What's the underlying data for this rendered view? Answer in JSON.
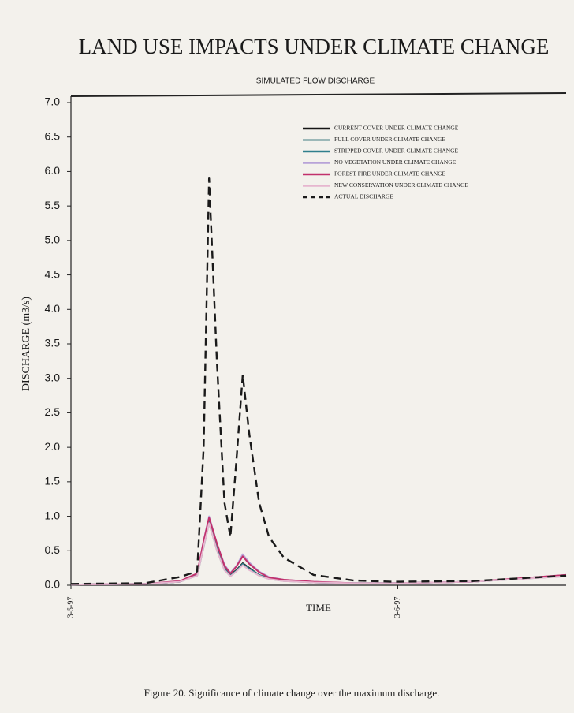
{
  "chart_data": {
    "type": "line",
    "title": "LAND USE IMPACTS UNDER CLIMATE CHANGE",
    "subtitle": "SIMULATED FLOW DISCHARGE",
    "x_label": "TIME",
    "y_label": "DISCHARGE (m3/s)",
    "caption": "Figure 20. Significance of climate change over the maximum discharge.",
    "x": [
      0,
      15,
      22,
      25.5,
      26.8,
      27.9,
      29.5,
      31,
      32.2,
      33.4,
      34.7,
      36,
      38,
      40,
      43,
      49,
      57,
      65,
      81,
      100
    ],
    "xlim": [
      0,
      100
    ],
    "xticks": [
      {
        "value": 0,
        "label": "3-5-97"
      },
      {
        "value": 66,
        "label": "3-6-97"
      }
    ],
    "ylim": [
      0,
      7
    ],
    "yticks": [
      {
        "value": 0,
        "label": "0.0"
      },
      0.5,
      {
        "value": 1,
        "label": "1.0"
      },
      1.5,
      {
        "value": 2,
        "label": "2.0"
      },
      2.5,
      {
        "value": 3,
        "label": "3.0"
      },
      3.5,
      {
        "value": 4,
        "label": "4.0"
      },
      4.5,
      {
        "value": 5,
        "label": "5.0"
      },
      5.5,
      {
        "value": 6,
        "label": "6.0"
      },
      6.5,
      {
        "value": 7,
        "label": "7.0"
      }
    ],
    "grid": false,
    "legend": "upper right",
    "series": [
      {
        "name": "CURRENT COVER UNDER CLIMATE CHANGE",
        "color": "#151515",
        "line_style": "solid",
        "values": [
          0.01,
          0.02,
          0.05,
          0.15,
          0.6,
          0.95,
          0.55,
          0.25,
          0.15,
          0.22,
          0.32,
          0.25,
          0.15,
          0.1,
          0.07,
          0.04,
          0.03,
          0.03,
          0.05,
          0.14
        ]
      },
      {
        "name": "FULL COVER UNDER CLIMATE CHANGE",
        "color": "#7fa6a6",
        "line_style": "solid",
        "values": [
          0.01,
          0.02,
          0.05,
          0.14,
          0.55,
          0.9,
          0.5,
          0.22,
          0.13,
          0.2,
          0.3,
          0.23,
          0.14,
          0.09,
          0.06,
          0.04,
          0.03,
          0.03,
          0.05,
          0.13
        ]
      },
      {
        "name": "STRIPPED COVER UNDER CLIMATE CHANGE",
        "color": "#2f7f8c",
        "line_style": "solid",
        "values": [
          0.01,
          0.02,
          0.05,
          0.15,
          0.58,
          0.93,
          0.52,
          0.24,
          0.14,
          0.21,
          0.31,
          0.24,
          0.15,
          0.1,
          0.07,
          0.04,
          0.03,
          0.03,
          0.05,
          0.14
        ]
      },
      {
        "name": "NO VEGETATION UNDER CLIMATE CHANGE",
        "color": "#b8a3d8",
        "line_style": "solid",
        "values": [
          0.01,
          0.02,
          0.06,
          0.17,
          0.65,
          1.0,
          0.6,
          0.3,
          0.18,
          0.28,
          0.45,
          0.33,
          0.2,
          0.12,
          0.08,
          0.05,
          0.03,
          0.03,
          0.05,
          0.15
        ]
      },
      {
        "name": "FOREST FIRE UNDER CLIMATE CHANGE",
        "color": "#c2306b",
        "line_style": "solid",
        "values": [
          0.01,
          0.02,
          0.06,
          0.17,
          0.64,
          0.98,
          0.6,
          0.28,
          0.17,
          0.27,
          0.42,
          0.31,
          0.19,
          0.11,
          0.08,
          0.05,
          0.03,
          0.03,
          0.05,
          0.15
        ]
      },
      {
        "name": "NEW CONSERVATION UNDER CLIMATE CHANGE",
        "color": "#e6b6cf",
        "line_style": "solid",
        "values": [
          0.01,
          0.02,
          0.05,
          0.14,
          0.56,
          0.9,
          0.5,
          0.22,
          0.13,
          0.2,
          0.29,
          0.22,
          0.14,
          0.09,
          0.06,
          0.04,
          0.03,
          0.03,
          0.05,
          0.13
        ]
      },
      {
        "name": "ACTUAL DISCHARGE",
        "color": "#1a1a1a",
        "line_style": "dashed",
        "values": [
          0.02,
          0.03,
          0.12,
          0.2,
          2.0,
          5.9,
          3.2,
          1.2,
          0.7,
          1.8,
          3.05,
          2.2,
          1.2,
          0.7,
          0.4,
          0.15,
          0.07,
          0.05,
          0.06,
          0.14
        ]
      }
    ]
  }
}
